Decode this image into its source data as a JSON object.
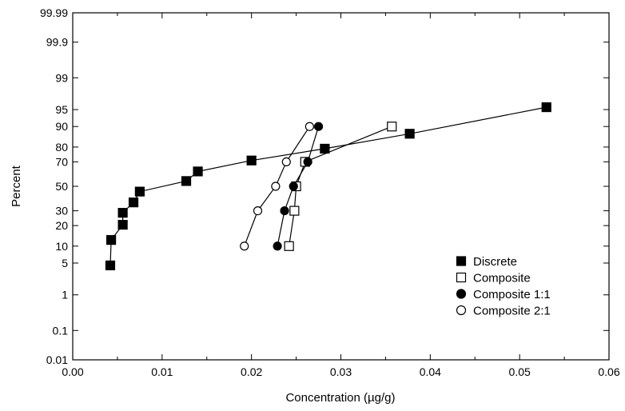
{
  "chart_data": {
    "type": "scatter",
    "xlabel": "Concentration (µg/g)",
    "ylabel": "Percent",
    "xlim": [
      0.0,
      0.06
    ],
    "ylim": [
      0.01,
      99.99
    ],
    "y_scale": "probability",
    "x_ticks": [
      "0.00",
      "0.01",
      "0.02",
      "0.03",
      "0.04",
      "0.05",
      "0.06"
    ],
    "y_ticks": [
      "0.01",
      "0.1",
      "1",
      "5",
      "10",
      "20",
      "30",
      "50",
      "70",
      "80",
      "90",
      "95",
      "99",
      "99.9",
      "99.99"
    ],
    "legend_position": "bottom-right",
    "series": [
      {
        "name": "Discrete",
        "marker": "square-filled",
        "connected": true,
        "points": [
          [
            0.0042,
            4.5
          ],
          [
            0.0043,
            12.5
          ],
          [
            0.0056,
            20.5
          ],
          [
            0.0056,
            28.5
          ],
          [
            0.0068,
            36.5
          ],
          [
            0.0075,
            45.5
          ],
          [
            0.0127,
            54.5
          ],
          [
            0.014,
            62.5
          ],
          [
            0.02,
            71.0
          ],
          [
            0.0282,
            79.0
          ],
          [
            0.0377,
            87.0
          ],
          [
            0.053,
            95.5
          ]
        ]
      },
      {
        "name": "Composite",
        "marker": "square-open",
        "connected": true,
        "points": [
          [
            0.0242,
            10.0
          ],
          [
            0.0248,
            30.0
          ],
          [
            0.025,
            50.0
          ],
          [
            0.026,
            70.0
          ],
          [
            0.0357,
            90.0
          ]
        ]
      },
      {
        "name": "Composite 1:1",
        "marker": "circle-filled",
        "connected": true,
        "points": [
          [
            0.0229,
            10.0
          ],
          [
            0.0237,
            30.0
          ],
          [
            0.0247,
            50.0
          ],
          [
            0.0263,
            70.0
          ],
          [
            0.0275,
            90.0
          ]
        ]
      },
      {
        "name": "Composite 2:1",
        "marker": "circle-open",
        "connected": true,
        "points": [
          [
            0.0192,
            10.0
          ],
          [
            0.0207,
            30.0
          ],
          [
            0.0227,
            50.0
          ],
          [
            0.0239,
            70.0
          ],
          [
            0.0265,
            90.0
          ]
        ]
      }
    ]
  }
}
